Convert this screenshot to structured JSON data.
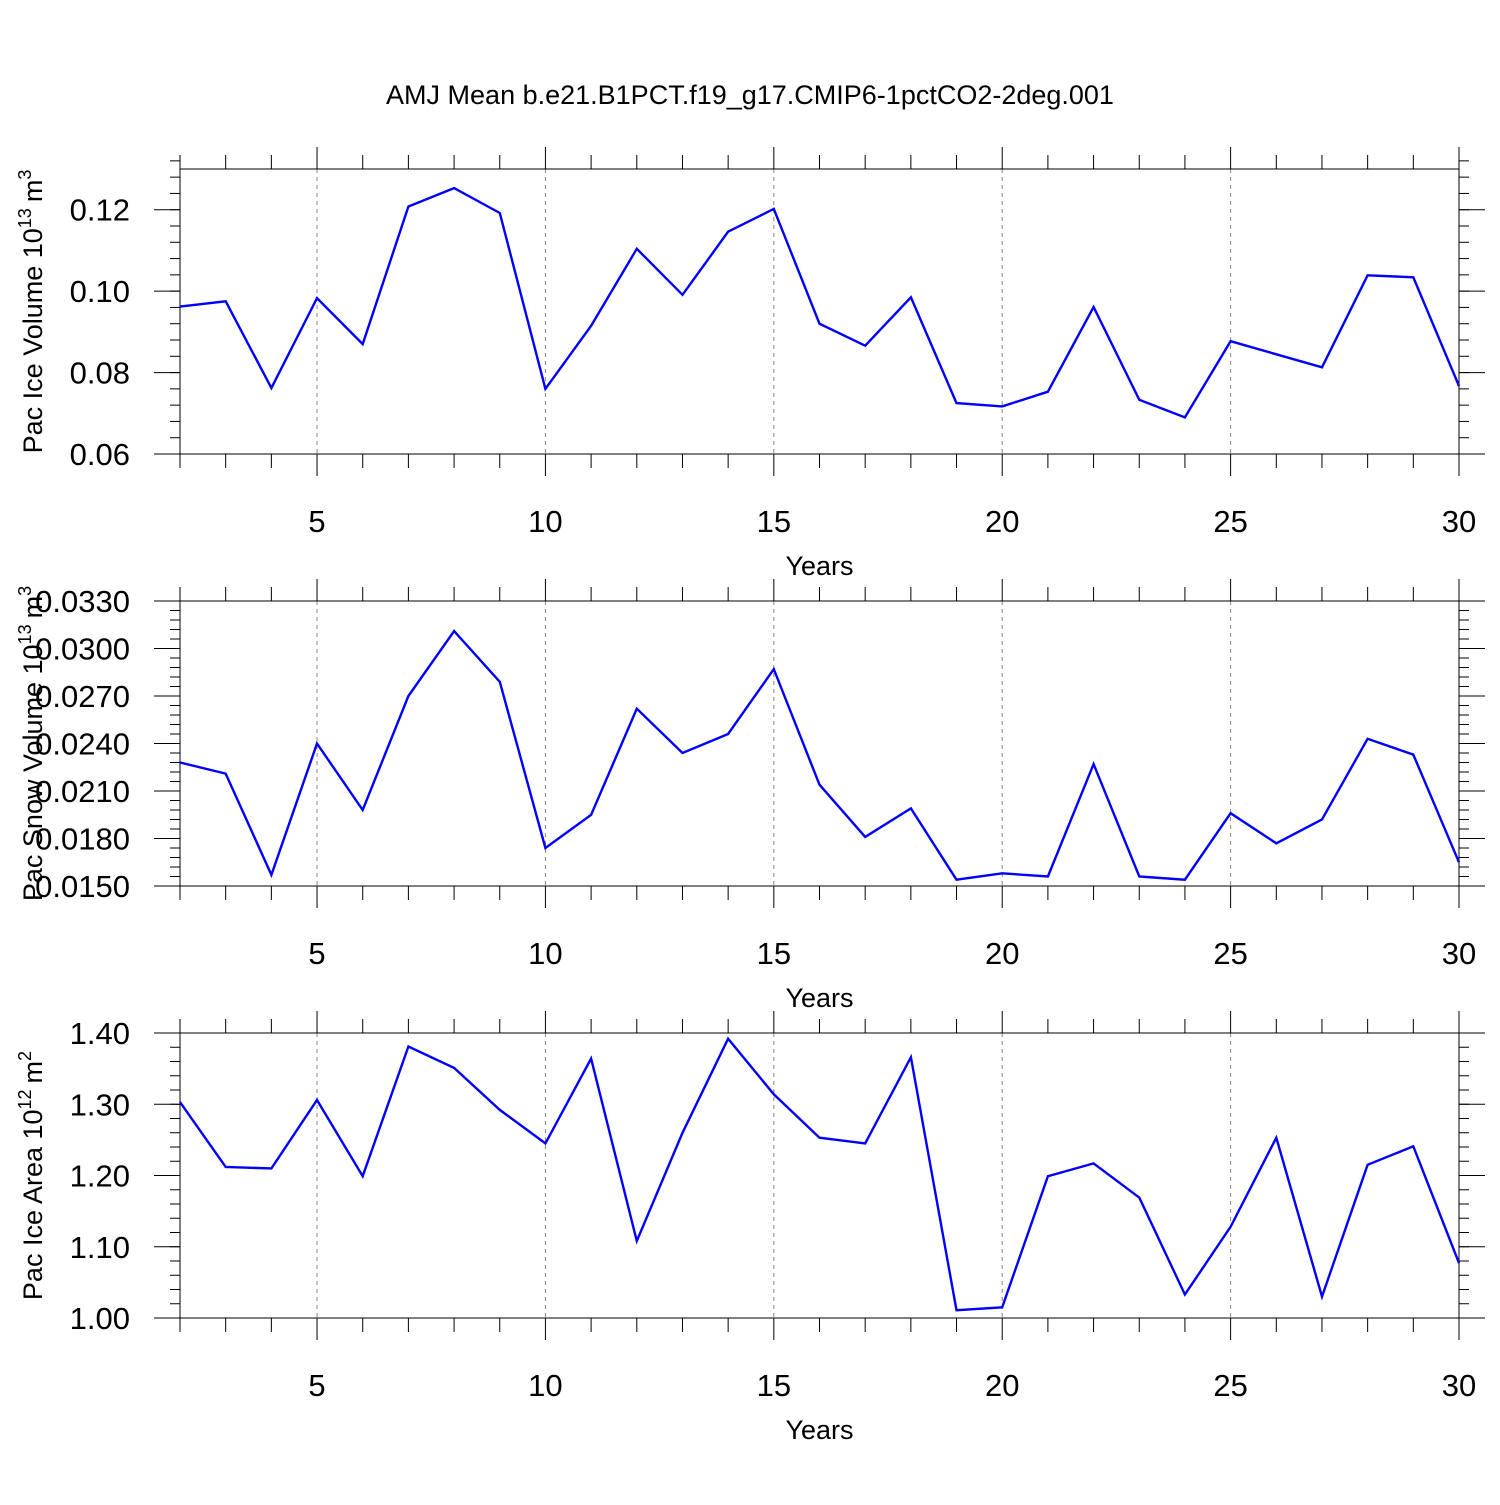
{
  "figure": {
    "title": "AMJ Mean b.e21.B1PCT.f19_g17.CMIP6-1pctCO2-2deg.001"
  },
  "colors": {
    "line": "#0000ff",
    "frame": "#000000",
    "grid": "#888888",
    "background": "#ffffff"
  },
  "chart_data": [
    {
      "type": "line",
      "title": "",
      "xlabel": "Years",
      "ylabel": "Pac Ice Volume 10",
      "ylabel_sup": "13",
      "ylabel_unit": "m",
      "ylabel_unit_sup": "3",
      "xlim": [
        2,
        30
      ],
      "ylim": [
        0.06,
        0.13
      ],
      "x_ticks": [
        5,
        10,
        15,
        20,
        25,
        30
      ],
      "x_tick_labels": [
        "5",
        "10",
        "15",
        "20",
        "25",
        "30"
      ],
      "y_ticks": [
        0.06,
        0.08,
        0.1,
        0.12
      ],
      "y_tick_labels": [
        "0.06",
        "0.08",
        "0.10",
        "0.12"
      ],
      "y_minor_step": 0.004,
      "grid": "vertical dashed at major x ticks",
      "x": [
        2,
        3,
        4,
        5,
        6,
        7,
        8,
        9,
        10,
        11,
        12,
        13,
        14,
        15,
        16,
        17,
        18,
        19,
        20,
        21,
        22,
        23,
        24,
        25,
        26,
        27,
        28,
        29,
        30
      ],
      "series": [
        {
          "values": [
            0.0962,
            0.0975,
            0.0762,
            0.0983,
            0.087,
            0.1208,
            0.1253,
            0.1192,
            0.076,
            0.0915,
            0.1104,
            0.0991,
            0.1146,
            0.1202,
            0.092,
            0.0866,
            0.0985,
            0.0725,
            0.0717,
            0.0753,
            0.0961,
            0.0733,
            0.069,
            0.0877,
            0.0845,
            0.0813,
            0.1039,
            0.1034,
            0.0767
          ]
        }
      ]
    },
    {
      "type": "line",
      "title": "",
      "xlabel": "Years",
      "ylabel": "Pac Snow Volume 10",
      "ylabel_sup": "13",
      "ylabel_unit": "m",
      "ylabel_unit_sup": "3",
      "xlim": [
        2,
        30
      ],
      "ylim": [
        0.015,
        0.033
      ],
      "x_ticks": [
        5,
        10,
        15,
        20,
        25,
        30
      ],
      "x_tick_labels": [
        "5",
        "10",
        "15",
        "20",
        "25",
        "30"
      ],
      "y_ticks": [
        0.015,
        0.018,
        0.021,
        0.024,
        0.027,
        0.03,
        0.033
      ],
      "y_tick_labels": [
        "0.0150",
        "0.0180",
        "0.0210",
        "0.0240",
        "0.0270",
        "0.0300",
        "0.0330"
      ],
      "y_minor_step": 0.0006,
      "grid": "vertical dashed at major x ticks",
      "x": [
        2,
        3,
        4,
        5,
        6,
        7,
        8,
        9,
        10,
        11,
        12,
        13,
        14,
        15,
        16,
        17,
        18,
        19,
        20,
        21,
        22,
        23,
        24,
        25,
        26,
        27,
        28,
        29,
        30
      ],
      "series": [
        {
          "values": [
            0.0228,
            0.0221,
            0.0157,
            0.024,
            0.0198,
            0.027,
            0.0311,
            0.0279,
            0.0174,
            0.0195,
            0.0262,
            0.0234,
            0.0246,
            0.0287,
            0.0214,
            0.0181,
            0.0199,
            0.0154,
            0.0158,
            0.0156,
            0.0227,
            0.0156,
            0.0154,
            0.0196,
            0.0177,
            0.0192,
            0.0243,
            0.0233,
            0.0165
          ]
        }
      ]
    },
    {
      "type": "line",
      "title": "",
      "xlabel": "Years",
      "ylabel": "Pac Ice Area 10",
      "ylabel_sup": "12",
      "ylabel_unit": "m",
      "ylabel_unit_sup": "2",
      "xlim": [
        2,
        30
      ],
      "ylim": [
        1.0,
        1.4
      ],
      "x_ticks": [
        5,
        10,
        15,
        20,
        25,
        30
      ],
      "x_tick_labels": [
        "5",
        "10",
        "15",
        "20",
        "25",
        "30"
      ],
      "y_ticks": [
        1.0,
        1.1,
        1.2,
        1.3,
        1.4
      ],
      "y_tick_labels": [
        "1.00",
        "1.10",
        "1.20",
        "1.30",
        "1.40"
      ],
      "y_minor_step": 0.02,
      "grid": "vertical dashed at major x ticks",
      "x": [
        2,
        3,
        4,
        5,
        6,
        7,
        8,
        9,
        10,
        11,
        12,
        13,
        14,
        15,
        16,
        17,
        18,
        19,
        20,
        21,
        22,
        23,
        24,
        25,
        26,
        27,
        28,
        29,
        30
      ],
      "series": [
        {
          "values": [
            1.303,
            1.212,
            1.21,
            1.306,
            1.199,
            1.381,
            1.351,
            1.292,
            1.245,
            1.364,
            1.108,
            1.26,
            1.392,
            1.314,
            1.253,
            1.245,
            1.366,
            1.011,
            1.015,
            1.199,
            1.217,
            1.169,
            1.033,
            1.128,
            1.253,
            1.03,
            1.215,
            1.241,
            1.077
          ]
        }
      ]
    }
  ]
}
